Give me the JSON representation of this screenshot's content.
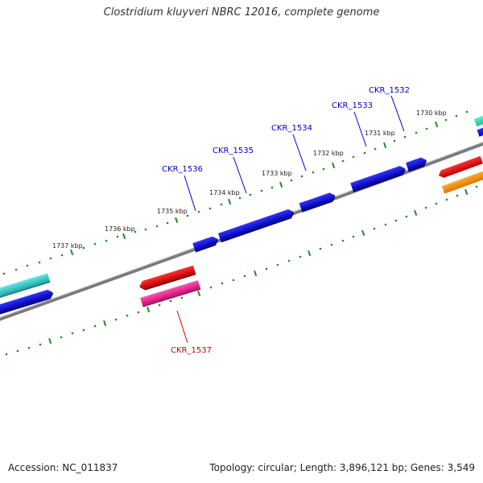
{
  "title": "Clostridium kluyveri NBRC 12016, complete genome",
  "footer": {
    "accession": "Accession: NC_011837",
    "summary": "Topology: circular; Length: 3,896,121 bp; Genes: 3,549"
  },
  "colors": {
    "backbone": "#808080",
    "tick": "#228B22",
    "blue_gene": "#0000DD",
    "red_gene": "#EE0000",
    "pink_gene": "#EE1493",
    "orange_gene": "#FF8C00",
    "cyan_gene": "#33CCCC",
    "teal_gene": "#33DDBB",
    "blue_label": "#0000CC",
    "red_label": "#CC0000"
  },
  "scale_labels": [
    {
      "text": "1737 kbp"
    },
    {
      "text": "1736 kbp"
    },
    {
      "text": "1735 kbp"
    },
    {
      "text": "1734 kbp"
    },
    {
      "text": "1733 kbp"
    },
    {
      "text": "1732 kbp"
    },
    {
      "text": "1731 kbp"
    },
    {
      "text": "1730 kbp"
    }
  ],
  "gene_labels": [
    {
      "text": "CKR_1536",
      "strand": "forward"
    },
    {
      "text": "CKR_1535",
      "strand": "forward"
    },
    {
      "text": "CKR_1534",
      "strand": "forward"
    },
    {
      "text": "CKR_1533",
      "strand": "forward"
    },
    {
      "text": "CKR_1532",
      "strand": "forward"
    },
    {
      "text": "CKR_1537",
      "strand": "reverse"
    }
  ]
}
